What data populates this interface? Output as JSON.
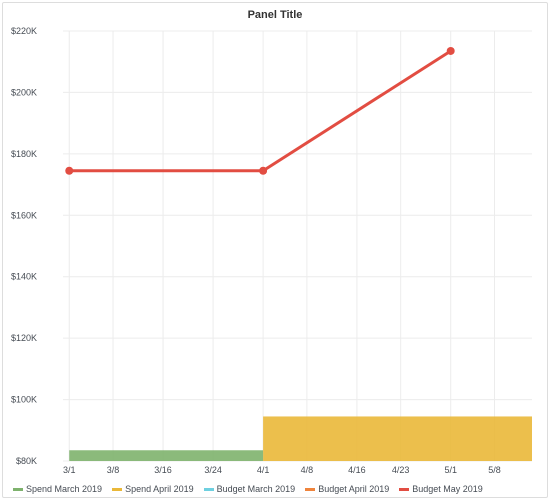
{
  "panel": {
    "title": "Panel Title"
  },
  "chart_data": {
    "type": "line",
    "title": "Panel Title",
    "xlabel": "",
    "ylabel": "",
    "x_tick_labels": [
      "3/1",
      "3/8",
      "3/16",
      "3/24",
      "4/1",
      "4/8",
      "4/16",
      "4/23",
      "5/1",
      "5/8"
    ],
    "x_tick_dates": [
      "2019-03-01",
      "2019-03-08",
      "2019-03-16",
      "2019-03-24",
      "2019-04-01",
      "2019-04-08",
      "2019-04-16",
      "2019-04-23",
      "2019-05-01",
      "2019-05-08"
    ],
    "xlim": [
      "2019-02-28",
      "2019-05-14"
    ],
    "ylim": [
      80000,
      220000
    ],
    "y_ticks": [
      80000,
      100000,
      120000,
      140000,
      160000,
      180000,
      200000,
      220000
    ],
    "y_tick_labels": [
      "$80K",
      "$100K",
      "$120K",
      "$140K",
      "$160K",
      "$180K",
      "$200K",
      "$220K"
    ],
    "grid": true,
    "legend_position": "bottom-left",
    "series": [
      {
        "name": "Spend March 2019",
        "kind": "bars",
        "color": "#7eb26d",
        "x_start": "2019-03-01",
        "x_end": "2019-04-01",
        "value": 83500
      },
      {
        "name": "Spend April 2019",
        "kind": "bars",
        "color": "#eab839",
        "x_start": "2019-04-01",
        "x_end": "2019-05-14",
        "value": 94500
      },
      {
        "name": "Budget March 2019",
        "kind": "line",
        "color": "#6ed0e0",
        "points": []
      },
      {
        "name": "Budget April 2019",
        "kind": "line",
        "color": "#ef843c",
        "points": []
      },
      {
        "name": "Budget May 2019",
        "kind": "line",
        "color": "#e24d42",
        "points": [
          [
            "2019-03-01",
            174500
          ],
          [
            "2019-04-01",
            174500
          ],
          [
            "2019-05-01",
            213500
          ]
        ]
      }
    ]
  }
}
